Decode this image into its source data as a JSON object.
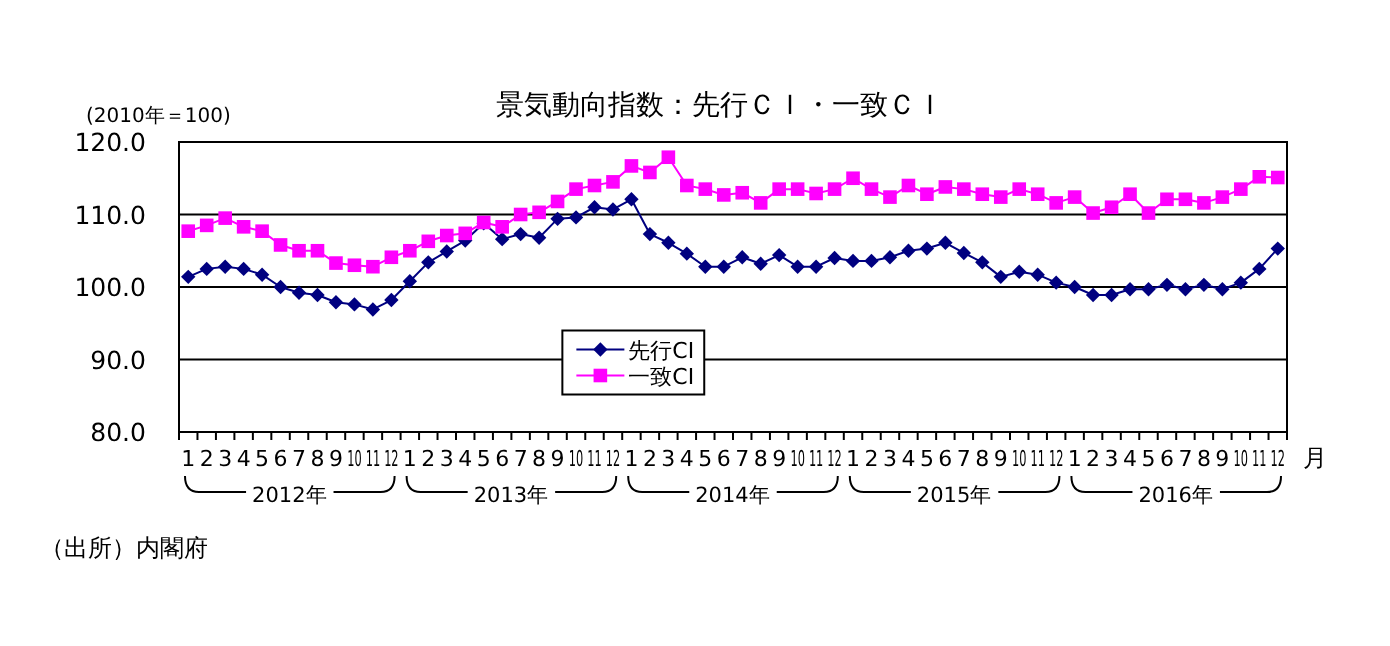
{
  "chart_data": {
    "type": "line",
    "title": "景気動向指数：先行ＣＩ・一致ＣＩ",
    "ylabel": "(2010年＝100)",
    "xlabel": "月",
    "categories": [
      "1",
      "2",
      "3",
      "4",
      "5",
      "6",
      "7",
      "8",
      "9",
      "10",
      "11",
      "12",
      "1",
      "2",
      "3",
      "4",
      "5",
      "6",
      "7",
      "8",
      "9",
      "10",
      "11",
      "12",
      "1",
      "2",
      "3",
      "4",
      "5",
      "6",
      "7",
      "8",
      "9",
      "10",
      "11",
      "12",
      "1",
      "2",
      "3",
      "4",
      "5",
      "6",
      "7",
      "8",
      "9",
      "10",
      "11",
      "12",
      "1",
      "2",
      "3",
      "4",
      "5",
      "6",
      "7",
      "8",
      "9",
      "10",
      "11",
      "12"
    ],
    "series": [
      {
        "name": "先行CI",
        "color": "#000080",
        "marker": "diamond",
        "values": [
          101.4,
          102.5,
          102.8,
          102.5,
          101.7,
          100.0,
          99.2,
          98.9,
          97.9,
          97.6,
          96.9,
          98.2,
          100.8,
          103.4,
          104.9,
          106.4,
          108.8,
          106.6,
          107.3,
          106.8,
          109.4,
          109.6,
          111.0,
          110.7,
          112.1,
          107.3,
          106.1,
          104.6,
          102.8,
          102.8,
          104.1,
          103.2,
          104.4,
          102.8,
          102.8,
          104.0,
          103.6,
          103.6,
          104.1,
          105.0,
          105.3,
          106.1,
          104.7,
          103.4,
          101.4,
          102.1,
          101.7,
          100.6,
          100.0,
          98.9,
          98.9,
          99.7,
          99.7,
          100.3,
          99.7,
          100.3,
          99.7,
          100.6,
          102.5,
          105.3
        ]
      },
      {
        "name": "一致CI",
        "color": "#ff00ff",
        "marker": "square",
        "values": [
          107.7,
          108.5,
          109.5,
          108.3,
          107.7,
          105.8,
          105.0,
          105.0,
          103.3,
          103.0,
          102.8,
          104.1,
          105.0,
          106.3,
          107.1,
          107.4,
          108.9,
          108.3,
          110.0,
          110.3,
          111.8,
          113.5,
          114.0,
          114.5,
          116.7,
          115.8,
          117.9,
          114.0,
          113.5,
          112.7,
          113.0,
          111.6,
          113.5,
          113.5,
          112.9,
          113.5,
          115.0,
          113.5,
          112.4,
          114.0,
          112.8,
          113.8,
          113.5,
          112.8,
          112.4,
          113.5,
          112.8,
          111.6,
          112.4,
          110.2,
          111.0,
          112.8,
          110.2,
          112.1,
          112.1,
          111.6,
          112.4,
          113.5,
          115.2,
          115.1
        ]
      }
    ],
    "ylim": [
      80,
      120
    ],
    "yticks": [
      {
        "value": 80,
        "label": "80.0"
      },
      {
        "value": 90,
        "label": "90.0"
      },
      {
        "value": 100,
        "label": "100.0"
      },
      {
        "value": 110,
        "label": "110.0"
      },
      {
        "value": 120,
        "label": "120.0"
      }
    ],
    "grid": "y",
    "legend": "bottom",
    "line_style": "solid",
    "annotations": [
      "2012年",
      "2013年",
      "2014年",
      "2015年",
      "2016年",
      "（出所）内閣府"
    ]
  }
}
